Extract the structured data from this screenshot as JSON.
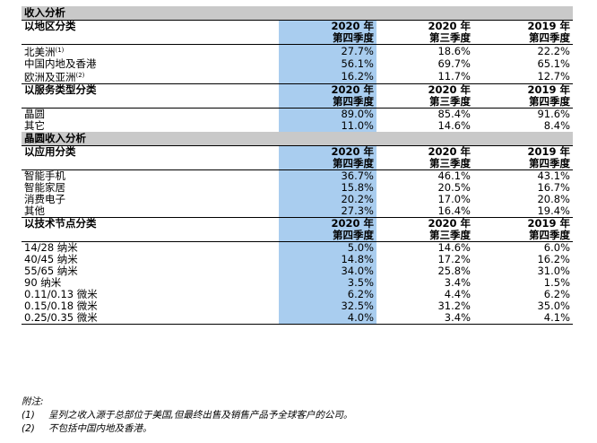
{
  "sections": [
    {
      "band": "收入分析",
      "blocks": [
        {
          "category": "以地区分类",
          "columns": [
            {
              "year": "2020 年",
              "quarter": "第四季度"
            },
            {
              "year": "2020 年",
              "quarter": "第三季度"
            },
            {
              "year": "2019 年",
              "quarter": "第四季度"
            }
          ],
          "rows": [
            {
              "label": "北美洲",
              "note": "(1)",
              "values": [
                "27.7%",
                "18.6%",
                "22.2%"
              ]
            },
            {
              "label": "中国内地及香港",
              "note": "",
              "values": [
                "56.1%",
                "69.7%",
                "65.1%"
              ]
            },
            {
              "label": "欧洲及亚洲",
              "note": "(2)",
              "values": [
                "16.2%",
                "11.7%",
                "12.7%"
              ]
            }
          ]
        },
        {
          "category": "以服务类型分类",
          "columns": [
            {
              "year": "2020 年",
              "quarter": "第四季度"
            },
            {
              "year": "2020 年",
              "quarter": "第三季度"
            },
            {
              "year": "2019 年",
              "quarter": "第四季度"
            }
          ],
          "rows": [
            {
              "label": "晶圆",
              "note": "",
              "values": [
                "89.0%",
                "85.4%",
                "91.6%"
              ]
            },
            {
              "label": "其它",
              "note": "",
              "values": [
                "11.0%",
                "14.6%",
                "8.4%"
              ]
            }
          ]
        }
      ]
    },
    {
      "band": "晶圆收入分析",
      "blocks": [
        {
          "category": "以应用分类",
          "columns": [
            {
              "year": "2020 年",
              "quarter": "第四季度"
            },
            {
              "year": "2020 年",
              "quarter": "第三季度"
            },
            {
              "year": "2019 年",
              "quarter": "第四季度"
            }
          ],
          "rows": [
            {
              "label": "智能手机",
              "note": "",
              "values": [
                "36.7%",
                "46.1%",
                "43.1%"
              ]
            },
            {
              "label": "智能家居",
              "note": "",
              "values": [
                "15.8%",
                "20.5%",
                "16.7%"
              ]
            },
            {
              "label": "消费电子",
              "note": "",
              "values": [
                "20.2%",
                "17.0%",
                "20.8%"
              ]
            },
            {
              "label": "其他",
              "note": "",
              "values": [
                "27.3%",
                "16.4%",
                "19.4%"
              ]
            }
          ]
        },
        {
          "category": "以技术节点分类",
          "columns": [
            {
              "year": "2020 年",
              "quarter": "第四季度"
            },
            {
              "year": "2020 年",
              "quarter": "第三季度"
            },
            {
              "year": "2019 年",
              "quarter": "第四季度"
            }
          ],
          "rows": [
            {
              "label": "14/28  纳米",
              "note": "",
              "values": [
                "5.0%",
                "14.6%",
                "6.0%"
              ]
            },
            {
              "label": "40/45  纳米",
              "note": "",
              "values": [
                "14.8%",
                "17.2%",
                "16.2%"
              ]
            },
            {
              "label": "55/65  纳米",
              "note": "",
              "values": [
                "34.0%",
                "25.8%",
                "31.0%"
              ]
            },
            {
              "label": "90  纳米",
              "note": "",
              "values": [
                "3.5%",
                "3.4%",
                "1.5%"
              ]
            },
            {
              "label": "0.11/0.13  微米",
              "note": "",
              "values": [
                "6.2%",
                "4.4%",
                "6.2%"
              ]
            },
            {
              "label": "0.15/0.18  微米",
              "note": "",
              "values": [
                "32.5%",
                "31.2%",
                "35.0%"
              ]
            },
            {
              "label": "0.25/0.35  微米",
              "note": "",
              "values": [
                "4.0%",
                "3.4%",
                "4.1%"
              ]
            }
          ]
        }
      ]
    }
  ],
  "footnotes": {
    "title": "附注:",
    "items": [
      {
        "index": "(1)",
        "text": "呈列之收入源于总部位于美国,但最终出售及销售产品予全球客户的公司。"
      },
      {
        "index": "(2)",
        "text": "不包括中国内地及香港。"
      }
    ]
  }
}
